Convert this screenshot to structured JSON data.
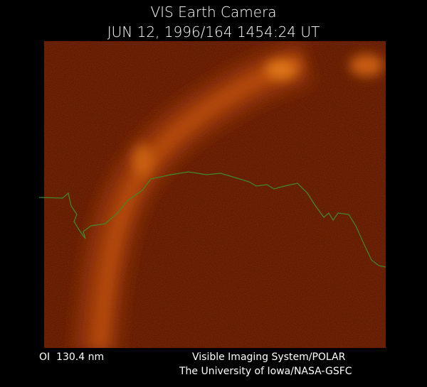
{
  "header": {
    "title": "VIS Earth Camera",
    "subtitle": "JUN 12, 1996/164 1454:24 UT"
  },
  "footer": {
    "filter": "OI  130.4 nm",
    "instrument": "Visible Imaging System/POLAR",
    "credit": "The University of Iowa/NASA-GSFC"
  }
}
